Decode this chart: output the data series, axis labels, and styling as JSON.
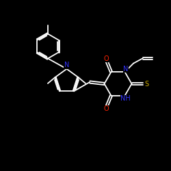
{
  "background_color": "#000000",
  "bond_color": "#ffffff",
  "N_color": "#3333ff",
  "O_color": "#ff2200",
  "S_color": "#ccaa00",
  "NH_color": "#3333ff",
  "figsize": [
    2.5,
    2.5
  ],
  "dpi": 100,
  "xlim": [
    0,
    10
  ],
  "ylim": [
    0,
    10
  ]
}
